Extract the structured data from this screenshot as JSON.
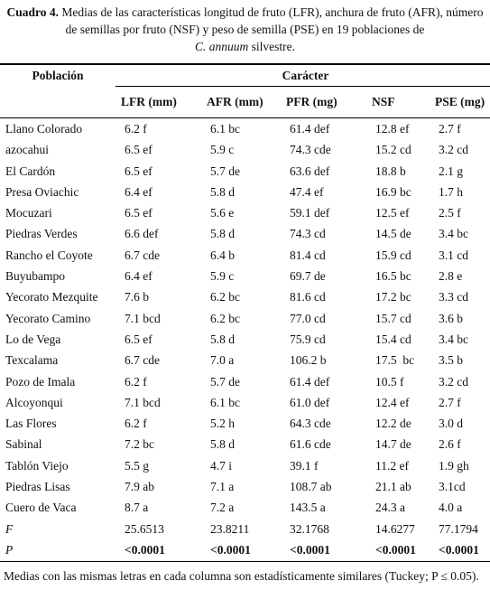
{
  "caption": {
    "label": "Cuadro 4.",
    "text": "Medias de las características longitud de fruto (LFR), anchura de fruto (AFR), número de semillas por fruto (NSF) y peso de semilla (PSE) en 19 poblaciones de",
    "species": "C. annuum",
    "suffix": "silvestre."
  },
  "table": {
    "row_header": "Población",
    "group_header": "Carácter",
    "columns": [
      "LFR (mm)",
      "AFR (mm)",
      "PFR (mg)",
      "NSF",
      "PSE (mg)"
    ],
    "rows": [
      [
        "Llano Colorado",
        "6.2 f",
        "6.1 bc",
        "61.4 def",
        "12.8 ef",
        "2.7 f"
      ],
      [
        "azocahui",
        "6.5 ef",
        "5.9 c",
        "74.3 cde",
        "15.2 cd",
        "3.2 cd"
      ],
      [
        "El Cardón",
        "6.5 ef",
        "5.7 de",
        "63.6 def",
        "18.8 b",
        "2.1 g"
      ],
      [
        "Presa Oviachic",
        "6.4 ef",
        "5.8 d",
        "47.4 ef",
        "16.9 bc",
        "1.7 h"
      ],
      [
        "Mocuzari",
        "6.5 ef",
        "5.6 e",
        "59.1 def",
        "12.5 ef",
        "2.5 f"
      ],
      [
        "Piedras Verdes",
        "6.6 def",
        "5.8 d",
        "74.3 cd",
        "14.5 de",
        "3.4 bc"
      ],
      [
        "Rancho el Coyote",
        "6.7 cde",
        "6.4 b",
        "81.4 cd",
        "15.9 cd",
        "3.1 cd"
      ],
      [
        "Buyubampo",
        "6.4 ef",
        "5.9 c",
        "69.7 de",
        "16.5 bc",
        "2.8 e"
      ],
      [
        "Yecorato Mezquite",
        "7.6 b",
        "6.2 bc",
        "81.6 cd",
        "17.2 bc",
        "3.3 cd"
      ],
      [
        "Yecorato Camino",
        "7.1 bcd",
        "6.2 bc",
        "77.0 cd",
        "15.7 cd",
        "3.6 b"
      ],
      [
        "Lo de Vega",
        "6.5 ef",
        "5.8 d",
        "75.9 cd",
        "15.4 cd",
        "3.4 bc"
      ],
      [
        "Texcalama",
        "6.7 cde",
        "7.0 a",
        "106.2 b",
        "17.5  bc",
        "3.5 b"
      ],
      [
        "Pozo de Imala",
        "6.2 f",
        "5.7 de",
        "61.4 def",
        "10.5 f",
        "3.2 cd"
      ],
      [
        "Alcoyonqui",
        "7.1 bcd",
        "6.1 bc",
        "61.0 def",
        "12.4 ef",
        "2.7 f"
      ],
      [
        "Las Flores",
        "6.2 f",
        "5.2 h",
        "64.3 cde",
        "12.2 de",
        "3.0 d"
      ],
      [
        "Sabinal",
        "7.2 bc",
        "5.8 d",
        "61.6 cde",
        "14.7 de",
        "2.6 f"
      ],
      [
        "Tablón Viejo",
        "5.5 g",
        "4.7 i",
        "39.1 f",
        "11.2 ef",
        "1.9 gh"
      ],
      [
        "Piedras Lisas",
        "7.9 ab",
        "7.1 a",
        "108.7 ab",
        "21.1 ab",
        "3.1cd"
      ],
      [
        "Cuero de Vaca",
        "8.7 a",
        "7.2 a",
        "143.5 a",
        "24.3 a",
        "4.0 a"
      ]
    ],
    "stats": [
      [
        "F",
        "25.6513",
        "23.8211",
        "32.1768",
        "14.6277",
        "77.1794"
      ],
      [
        "P",
        "<0.0001",
        "<0.0001",
        "<0.0001",
        "<0.0001",
        "<0.0001"
      ]
    ]
  },
  "footnote": "Medias con las mismas letras en cada columna son estadísticamente similares (Tuckey; P ≤ 0.05)."
}
